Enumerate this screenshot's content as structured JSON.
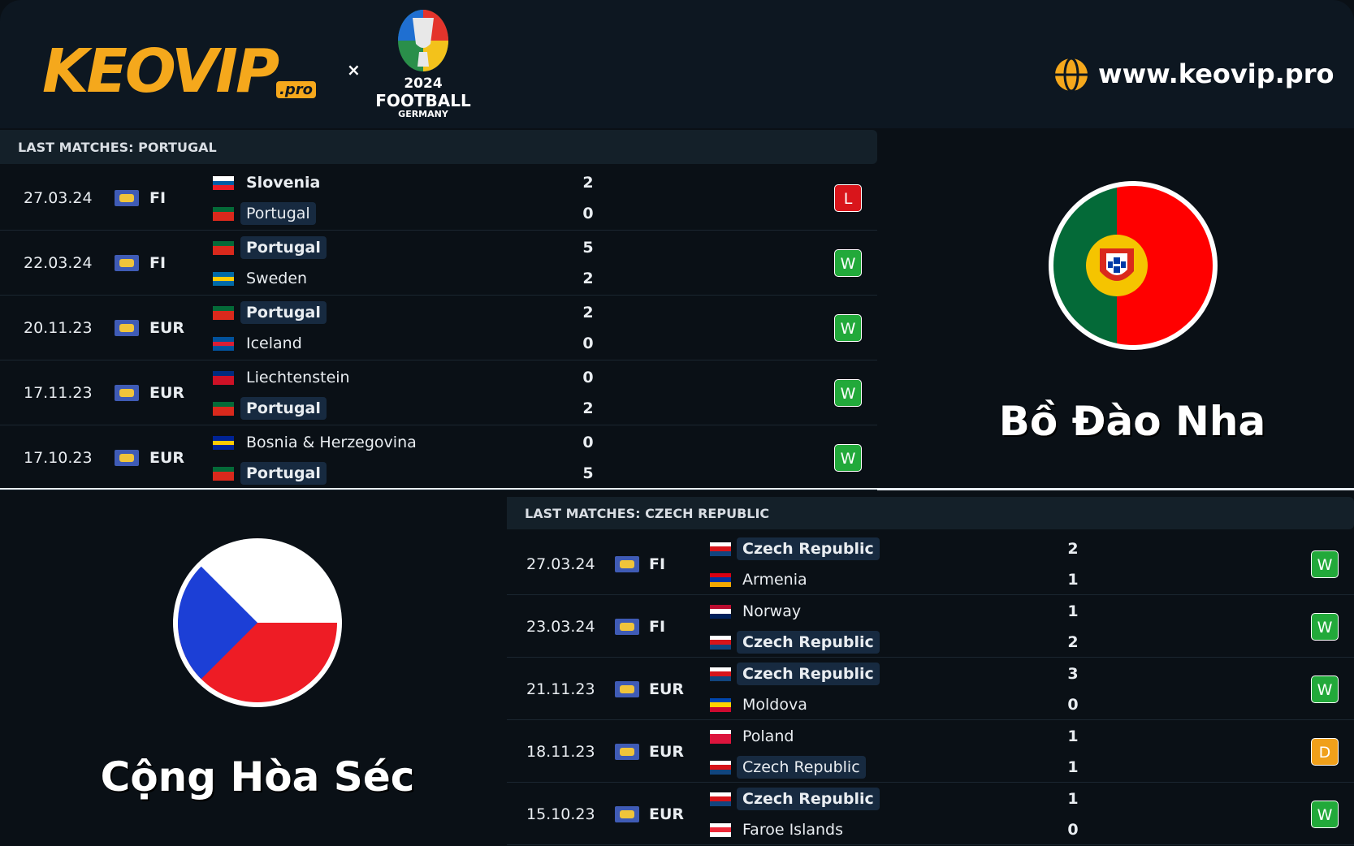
{
  "header": {
    "logo": "KEOVIP",
    "logo_suffix": ".pro",
    "separator": "×",
    "event_year": "2024",
    "event_name": "FOOTBALL",
    "event_host": "GERMANY",
    "website": "www.keovip.pro"
  },
  "sections": [
    {
      "heading": "LAST MATCHES: PORTUGAL",
      "team_name": "Bồ Đào Nha",
      "matches": [
        {
          "date": "27.03.24",
          "competition": "FI",
          "home": "Slovenia",
          "home_flag": [
            "#ffffff",
            "#005da4",
            "#ed1c24"
          ],
          "home_score": 2,
          "away": "Portugal",
          "away_flag": [
            "#046a38",
            "#da291c",
            "#da291c"
          ],
          "away_score": 0,
          "result": "L"
        },
        {
          "date": "22.03.24",
          "competition": "FI",
          "home": "Portugal",
          "home_flag": [
            "#046a38",
            "#da291c",
            "#da291c"
          ],
          "home_score": 5,
          "away": "Sweden",
          "away_flag": [
            "#006aa7",
            "#fecc00",
            "#006aa7"
          ],
          "away_score": 2,
          "result": "W"
        },
        {
          "date": "20.11.23",
          "competition": "EUR",
          "home": "Portugal",
          "home_flag": [
            "#046a38",
            "#da291c",
            "#da291c"
          ],
          "home_score": 2,
          "away": "Iceland",
          "away_flag": [
            "#02529c",
            "#dc1e35",
            "#02529c"
          ],
          "away_score": 0,
          "result": "W"
        },
        {
          "date": "17.11.23",
          "competition": "EUR",
          "home": "Liechtenstein",
          "home_flag": [
            "#002b7f",
            "#ce1126",
            "#ce1126"
          ],
          "home_score": 0,
          "away": "Portugal",
          "away_flag": [
            "#046a38",
            "#da291c",
            "#da291c"
          ],
          "away_score": 2,
          "result": "W"
        },
        {
          "date": "17.10.23",
          "competition": "EUR",
          "home": "Bosnia & Herzegovina",
          "home_flag": [
            "#002395",
            "#fecb00",
            "#002395"
          ],
          "home_score": 0,
          "away": "Portugal",
          "away_flag": [
            "#046a38",
            "#da291c",
            "#da291c"
          ],
          "away_score": 5,
          "result": "W"
        }
      ]
    },
    {
      "heading": "LAST MATCHES: CZECH REPUBLIC",
      "team_name": "Cộng Hòa Séc",
      "matches": [
        {
          "date": "27.03.24",
          "competition": "FI",
          "home": "Czech Republic",
          "home_flag": [
            "#ffffff",
            "#d7141a",
            "#11457e"
          ],
          "home_score": 2,
          "away": "Armenia",
          "away_flag": [
            "#d90012",
            "#0033a0",
            "#f2a800"
          ],
          "away_score": 1,
          "result": "W"
        },
        {
          "date": "23.03.24",
          "competition": "FI",
          "home": "Norway",
          "home_flag": [
            "#ba0c2f",
            "#ffffff",
            "#00205b"
          ],
          "home_score": 1,
          "away": "Czech Republic",
          "away_flag": [
            "#ffffff",
            "#d7141a",
            "#11457e"
          ],
          "away_score": 2,
          "result": "W"
        },
        {
          "date": "21.11.23",
          "competition": "EUR",
          "home": "Czech Republic",
          "home_flag": [
            "#ffffff",
            "#d7141a",
            "#11457e"
          ],
          "home_score": 3,
          "away": "Moldova",
          "away_flag": [
            "#0046ae",
            "#ffd200",
            "#cc092f"
          ],
          "away_score": 0,
          "result": "W"
        },
        {
          "date": "18.11.23",
          "competition": "EUR",
          "home": "Poland",
          "home_flag": [
            "#ffffff",
            "#dc143c",
            "#dc143c"
          ],
          "home_score": 1,
          "away": "Czech Republic",
          "away_flag": [
            "#ffffff",
            "#d7141a",
            "#11457e"
          ],
          "away_score": 1,
          "result": "D"
        },
        {
          "date": "15.10.23",
          "competition": "EUR",
          "home": "Czech Republic",
          "home_flag": [
            "#ffffff",
            "#d7141a",
            "#11457e"
          ],
          "home_score": 1,
          "away": "Faroe Islands",
          "away_flag": [
            "#ffffff",
            "#ed2939",
            "#ffffff"
          ],
          "away_score": 0,
          "result": "W"
        }
      ]
    }
  ]
}
